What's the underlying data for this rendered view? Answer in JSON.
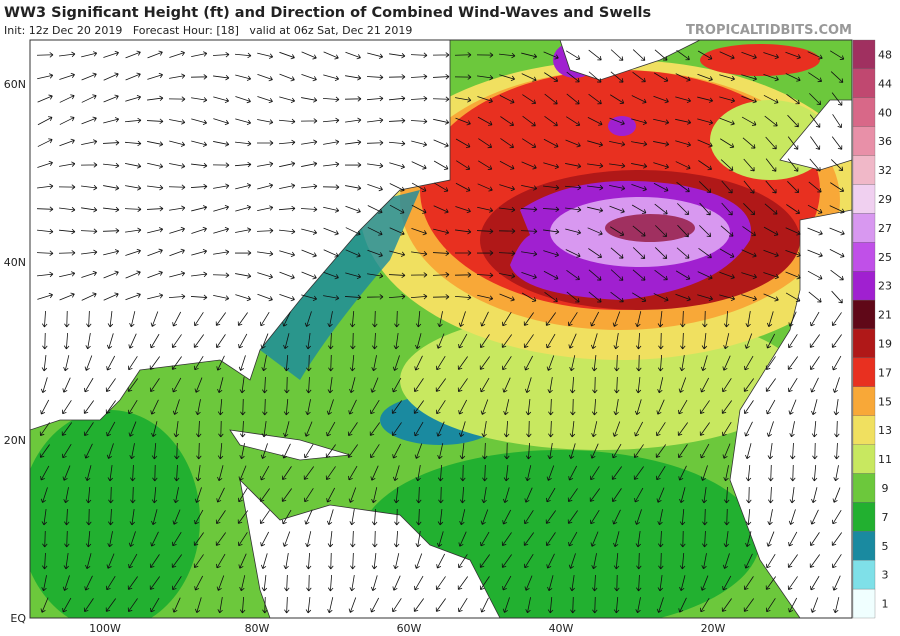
{
  "header": {
    "title": "WW3 Significant Height (ft) and Direction of Combined Wind-Waves and Swells",
    "subtitle": "Init: 12z Dec 20 2019   Forecast Hour: [18]   valid at 06z Sat, Dec 21 2019",
    "brand": "TROPICALTIDBITS.COM"
  },
  "map": {
    "lat_labels": [
      "60N",
      "40N",
      "20N",
      "EQ"
    ],
    "lon_labels": [
      "100W",
      "80W",
      "60W",
      "40W",
      "20W"
    ]
  },
  "colorbar": {
    "labels": [
      48,
      44,
      40,
      36,
      32,
      29,
      27,
      25,
      23,
      21,
      19,
      17,
      15,
      13,
      11,
      9,
      7,
      5,
      3,
      1
    ]
  }
}
